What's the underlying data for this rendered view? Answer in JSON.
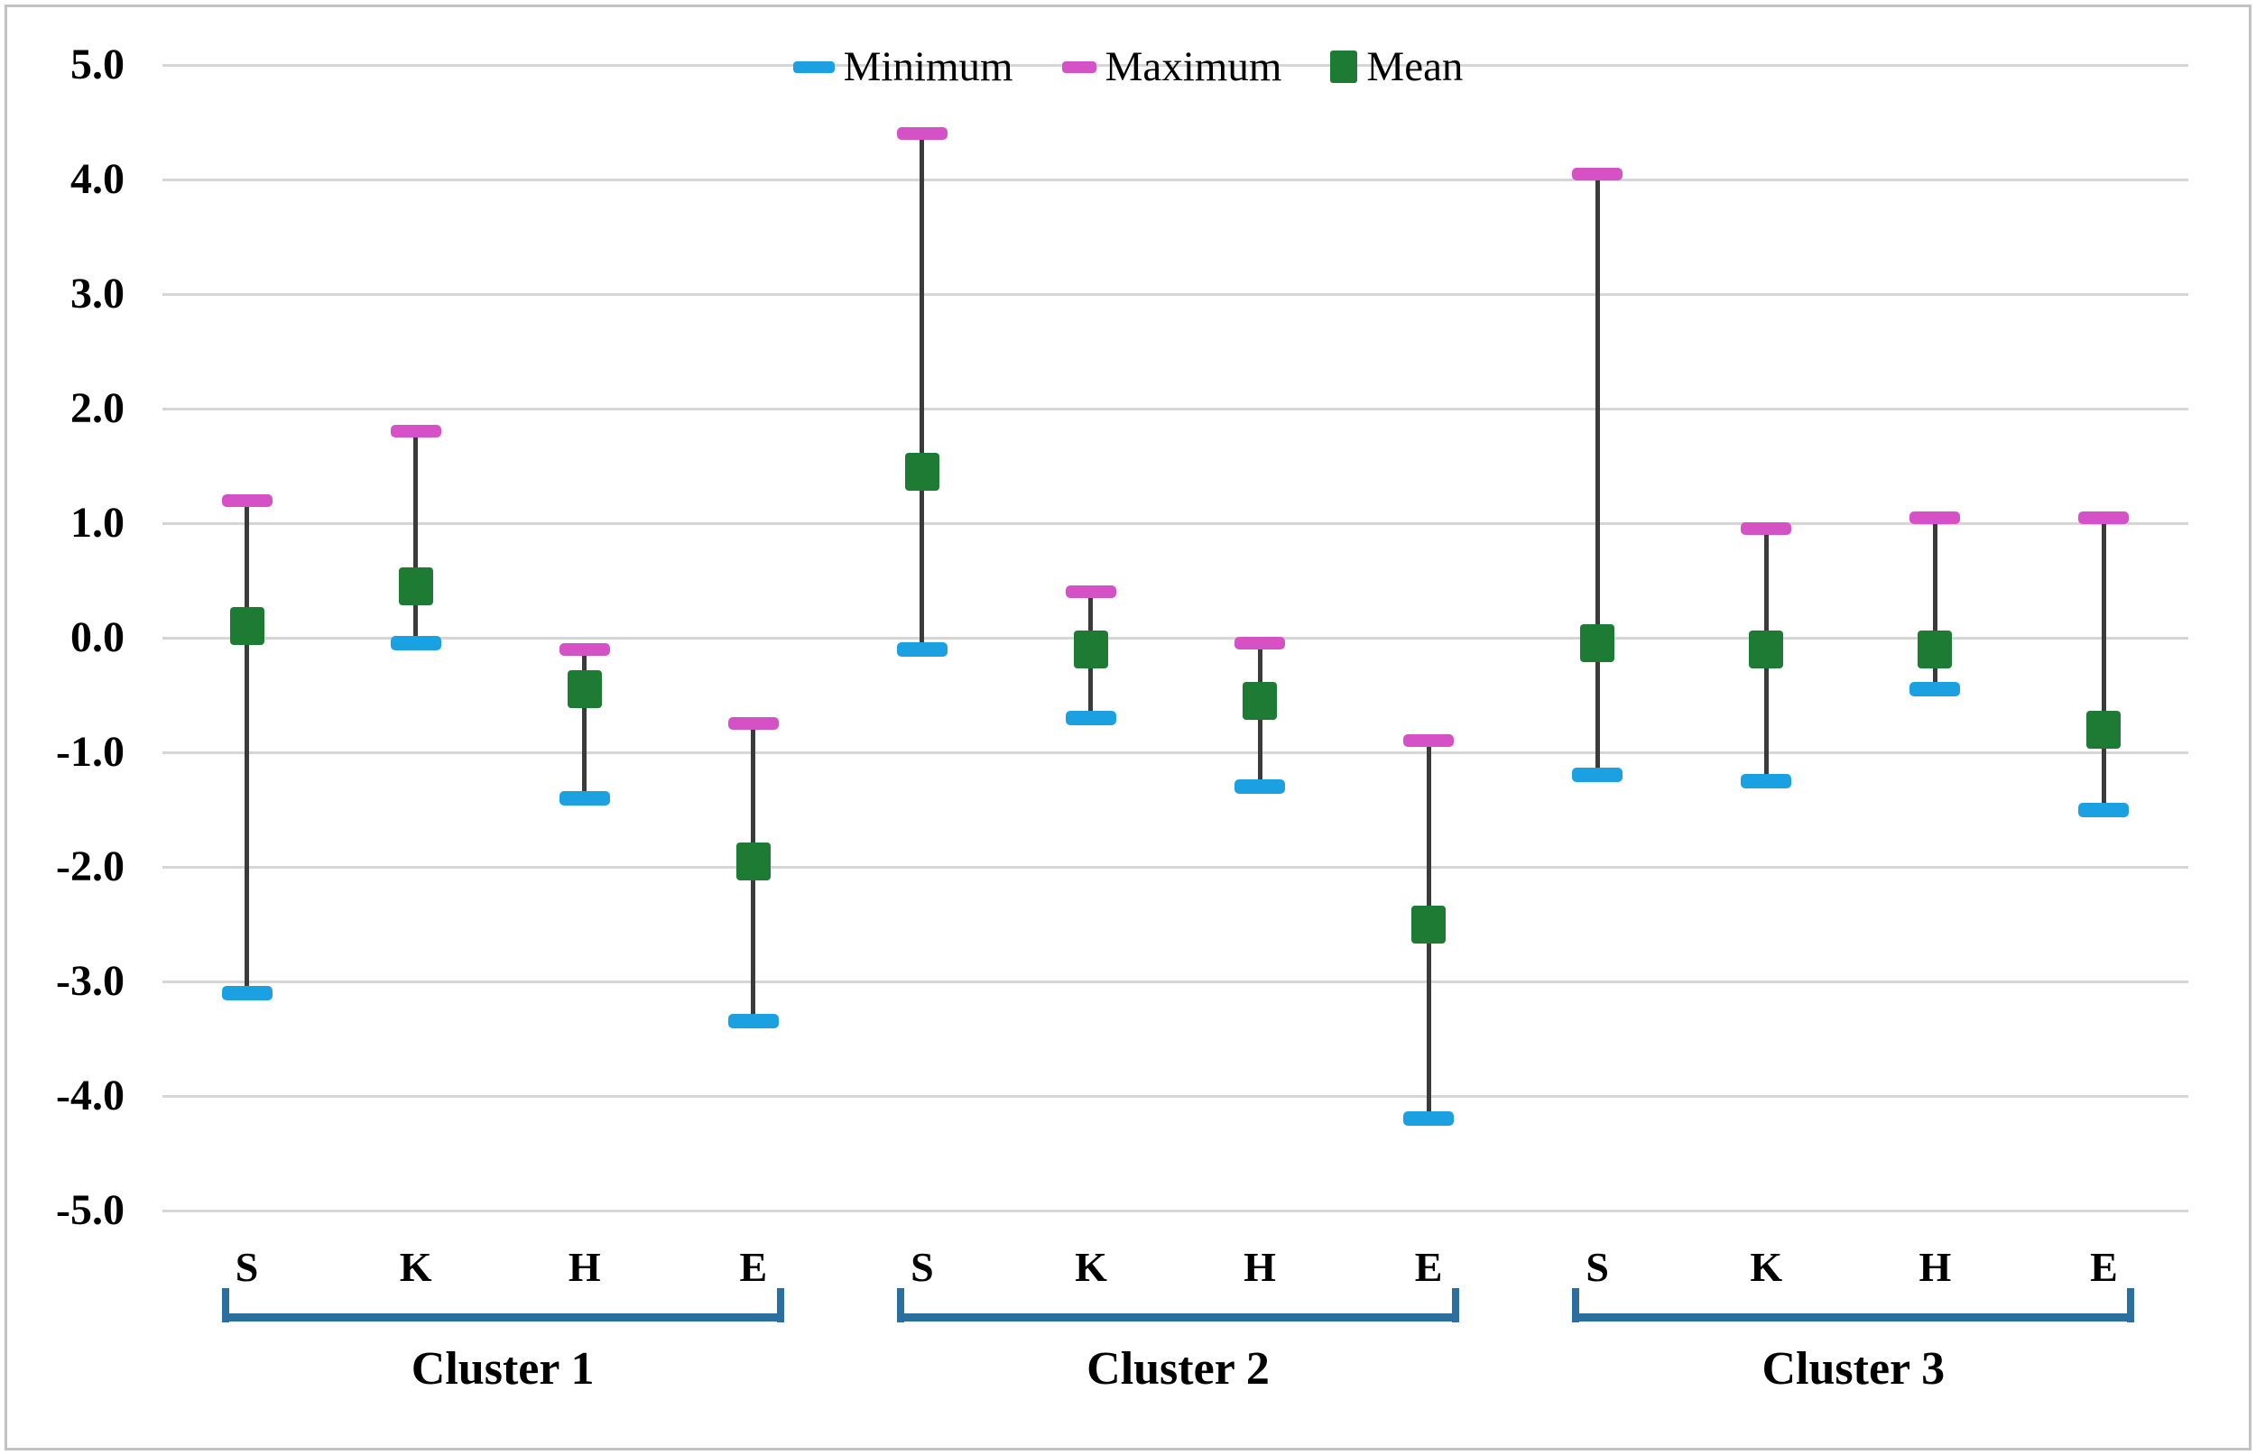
{
  "chart_data": {
    "type": "scatter",
    "subtype": "min-max-mean-range-bars",
    "title": "",
    "xlabel": "",
    "ylabel": "",
    "categories": [
      "S",
      "K",
      "H",
      "E",
      "S",
      "K",
      "H",
      "E",
      "S",
      "K",
      "H",
      "E"
    ],
    "clusters": [
      {
        "label": "Cluster 1",
        "start_index": 0,
        "end_index": 3
      },
      {
        "label": "Cluster 2",
        "start_index": 4,
        "end_index": 7
      },
      {
        "label": "Cluster 3",
        "start_index": 8,
        "end_index": 11
      }
    ],
    "series": [
      {
        "name": "Minimum",
        "marker": "dash",
        "color": "#1ba0e2",
        "values": [
          -3.1,
          -0.05,
          -1.4,
          -3.35,
          -0.1,
          -0.7,
          -1.3,
          -4.2,
          -1.2,
          -1.25,
          -0.45,
          -1.5
        ]
      },
      {
        "name": "Maximum",
        "marker": "dash",
        "color": "#d451c6",
        "values": [
          1.2,
          1.8,
          -0.1,
          -0.75,
          4.4,
          0.4,
          -0.05,
          -0.9,
          4.05,
          0.95,
          1.05,
          1.05
        ]
      },
      {
        "name": "Mean",
        "marker": "square",
        "color": "#1e7b33",
        "values": [
          0.1,
          0.45,
          -0.45,
          -1.95,
          1.45,
          -0.1,
          -0.55,
          -2.5,
          -0.05,
          -0.1,
          -0.1,
          -0.8
        ]
      }
    ],
    "ylim": [
      -5.0,
      5.0
    ],
    "ytick_step": 1.0,
    "yticks": [
      5,
      4,
      3,
      2,
      1,
      0,
      -1,
      -2,
      -3,
      -4,
      -5
    ],
    "ytick_labels": [
      "5.0",
      "4.0",
      "3.0",
      "2.0",
      "1.0",
      "0.0",
      "-1.0",
      "-2.0",
      "-3.0",
      "-4.0",
      "-5.0"
    ],
    "grid": "horizontal-only",
    "legend_position": "top-center"
  },
  "colors": {
    "min_marker": "#1ba0e2",
    "max_marker": "#d451c6",
    "mean_marker": "#1e7b33",
    "range_line": "#3b3b3b",
    "gridline": "#d6d6d6",
    "bracket": "#2a6f9e",
    "frame_border": "#c2c2c2",
    "text": "#000000",
    "background": "#ffffff"
  }
}
